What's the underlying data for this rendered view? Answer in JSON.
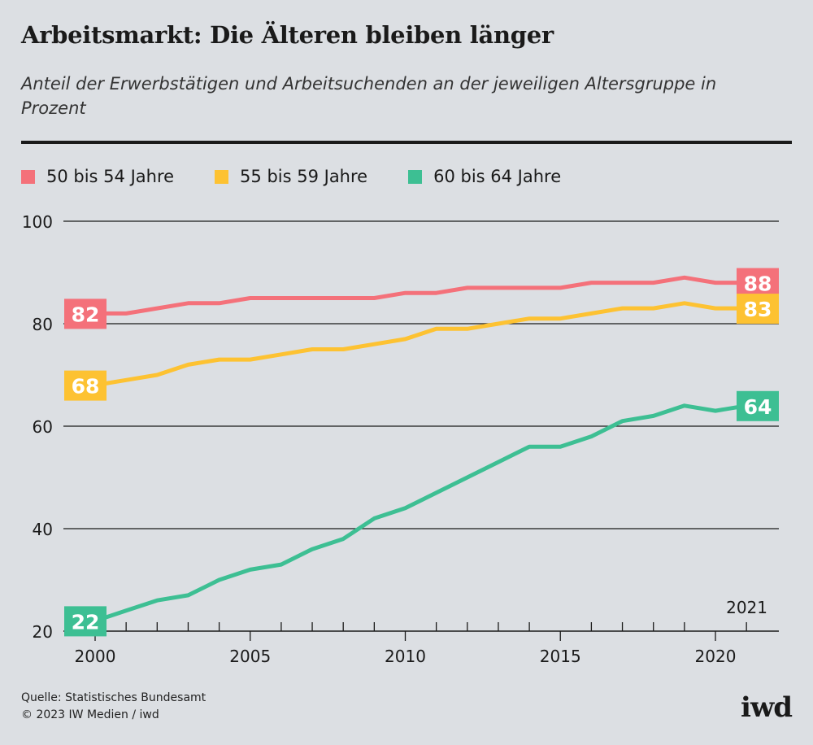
{
  "title": "Arbeitsmarkt: Die Älteren bleiben länger",
  "subtitle": "Anteil der Erwerbstätigen und Arbeitsuchenden an der jeweiligen Altersgruppe in Prozent",
  "source": "Quelle: Statistisches Bundesamt",
  "copyright": "© 2023 IW Medien / iwd",
  "logo": "iwd",
  "chart_data": {
    "type": "line",
    "x": [
      2000,
      2001,
      2002,
      2003,
      2004,
      2005,
      2006,
      2007,
      2008,
      2009,
      2010,
      2011,
      2012,
      2013,
      2014,
      2015,
      2016,
      2017,
      2018,
      2019,
      2020,
      2021
    ],
    "series": [
      {
        "name": "50 bis 54 Jahre",
        "color": "#f4717a",
        "values": [
          82,
          82,
          83,
          84,
          84,
          85,
          85,
          85,
          85,
          85,
          86,
          86,
          87,
          87,
          87,
          87,
          88,
          88,
          88,
          89,
          88,
          88
        ]
      },
      {
        "name": "55 bis 59 Jahre",
        "color": "#fdc232",
        "values": [
          68,
          69,
          70,
          72,
          73,
          73,
          74,
          75,
          75,
          76,
          77,
          79,
          79,
          80,
          81,
          81,
          82,
          83,
          83,
          84,
          83,
          83
        ]
      },
      {
        "name": "60 bis 64 Jahre",
        "color": "#3dbf93",
        "values": [
          22,
          24,
          26,
          27,
          30,
          32,
          33,
          36,
          38,
          42,
          44,
          47,
          50,
          53,
          56,
          56,
          58,
          61,
          62,
          64,
          63,
          64
        ]
      }
    ],
    "ylim": [
      20,
      100
    ],
    "yticks": [
      20,
      40,
      60,
      80,
      100
    ],
    "xticks": [
      2000,
      2005,
      2010,
      2015,
      2020
    ],
    "xlim": [
      2000,
      2021
    ],
    "annotation": "2021",
    "grid": true,
    "legend": "top-left"
  }
}
